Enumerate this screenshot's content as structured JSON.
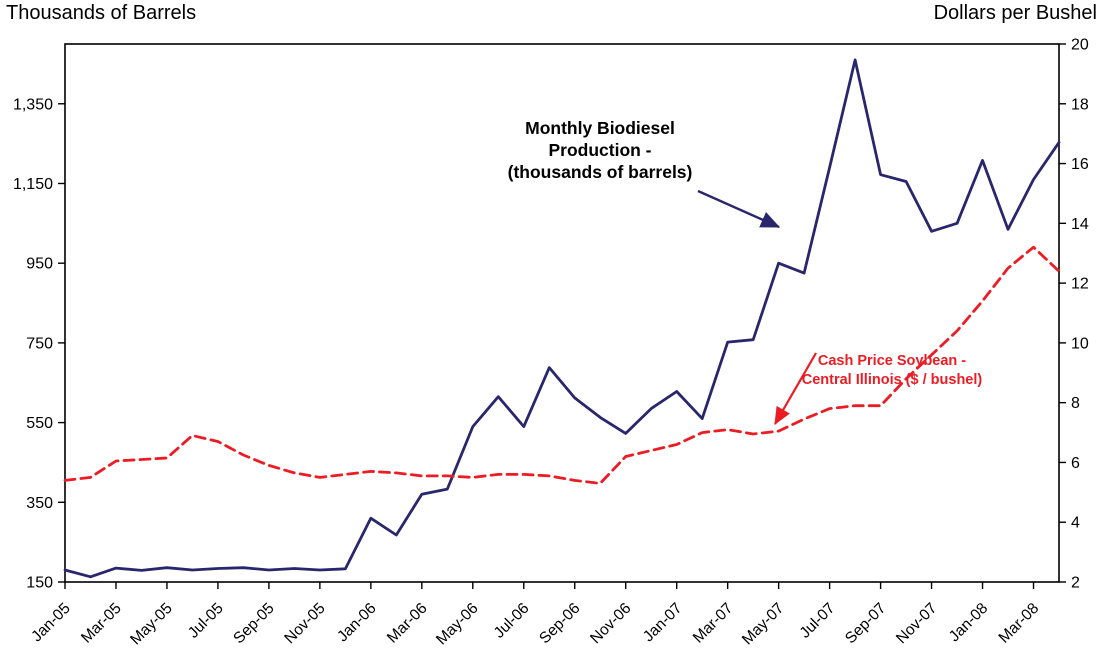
{
  "page": {
    "left_axis_title": "Thousands of Barrels",
    "right_axis_title": "Dollars per Bushel"
  },
  "chart_data": {
    "type": "line",
    "x": [
      "Jan-05",
      "Feb-05",
      "Mar-05",
      "Apr-05",
      "May-05",
      "Jun-05",
      "Jul-05",
      "Aug-05",
      "Sep-05",
      "Oct-05",
      "Nov-05",
      "Dec-05",
      "Jan-06",
      "Feb-06",
      "Mar-06",
      "Apr-06",
      "May-06",
      "Jun-06",
      "Jul-06",
      "Aug-06",
      "Sep-06",
      "Oct-06",
      "Nov-06",
      "Dec-06",
      "Jan-07",
      "Feb-07",
      "Mar-07",
      "Apr-07",
      "May-07",
      "Jun-07",
      "Jul-07",
      "Aug-07",
      "Sep-07",
      "Oct-07",
      "Nov-07",
      "Dec-07",
      "Jan-08",
      "Feb-08",
      "Mar-08",
      "Apr-08"
    ],
    "x_tick_labels": [
      "Jan-05",
      "Mar-05",
      "May-05",
      "Jul-05",
      "Sep-05",
      "Nov-05",
      "Jan-06",
      "Mar-06",
      "May-06",
      "Jul-06",
      "Sep-06",
      "Nov-06",
      "Jan-07",
      "Mar-07",
      "May-07",
      "Jul-07",
      "Sep-07",
      "Nov-07",
      "Jan-08",
      "Mar-08"
    ],
    "series": [
      {
        "name": "Monthly Biodiesel Production - (thousands of barrels)",
        "dom_name": "biodiesel-series-line",
        "axis": "left",
        "color": "#29276b",
        "style": "solid",
        "values": [
          180,
          163,
          185,
          179,
          186,
          180,
          184,
          186,
          180,
          184,
          180,
          183,
          310,
          268,
          370,
          383,
          540,
          615,
          540,
          688,
          612,
          563,
          523,
          585,
          628,
          560,
          752,
          758,
          950,
          925,
          1190,
          1460,
          1172,
          1155,
          1030,
          1050,
          1208,
          1035,
          1160,
          1253
        ]
      },
      {
        "name": "Cash Price Soybean - Central Illinois ($ / bushel)",
        "dom_name": "soybean-series-line",
        "axis": "right",
        "color": "#ec1c24",
        "style": "dashed",
        "values": [
          5.4,
          5.5,
          6.05,
          6.1,
          6.15,
          6.9,
          6.7,
          6.25,
          5.9,
          5.65,
          5.5,
          5.6,
          5.7,
          5.65,
          5.55,
          5.55,
          5.5,
          5.6,
          5.6,
          5.55,
          5.4,
          5.3,
          6.2,
          6.4,
          6.6,
          7.0,
          7.1,
          6.95,
          7.05,
          7.45,
          7.8,
          7.9,
          7.9,
          8.8,
          9.6,
          10.4,
          11.4,
          12.5,
          13.2,
          12.4
        ]
      }
    ],
    "left_axis": {
      "title": "Thousands of Barrels",
      "min": 150,
      "max": 1500,
      "ticks": [
        150,
        350,
        550,
        750,
        950,
        1150,
        1350
      ],
      "tick_labels": [
        "150",
        "350",
        "550",
        "750",
        "950",
        "1,150",
        "1,350"
      ]
    },
    "right_axis": {
      "title": "Dollars per Bushel",
      "min": 2,
      "max": 20,
      "ticks": [
        2,
        4,
        6,
        8,
        10,
        12,
        14,
        16,
        18,
        20
      ],
      "tick_labels": [
        "2",
        "4",
        "6",
        "8",
        "10",
        "12",
        "14",
        "16",
        "18",
        "20"
      ]
    },
    "grid": "off",
    "legend": "none",
    "annotations": [
      {
        "id": "biodiesel",
        "lines": [
          "Monthly Biodiesel",
          "Production -",
          "(thousands of barrels)"
        ],
        "text_color": "#000000",
        "arrow_color": "#29276b"
      },
      {
        "id": "soybean",
        "lines": [
          "Cash Price Soybean -",
          "Central Illinois ($ / bushel)"
        ],
        "text_color": "#ec1c24",
        "arrow_color": "#ec1c24"
      }
    ]
  }
}
